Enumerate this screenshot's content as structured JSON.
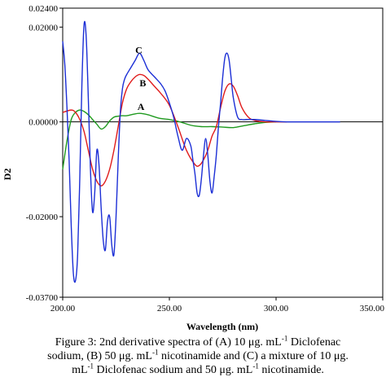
{
  "chart_data": {
    "type": "line",
    "title": "",
    "xlabel": "Wavelength (nm)",
    "ylabel": "D2",
    "xlim": [
      200,
      350
    ],
    "ylim": [
      -0.037,
      0.024
    ],
    "xticks": [
      "200.00",
      "250.00",
      "300.00",
      "350.00"
    ],
    "yticks": [
      "0.02400",
      "0.02000",
      "0.00000",
      "-0.02000",
      "-0.03700"
    ],
    "xtick_values": [
      200,
      250,
      300,
      350
    ],
    "ytick_values": [
      0.024,
      0.02,
      0,
      -0.02,
      -0.037
    ],
    "grid": false,
    "series": [
      {
        "name": "A",
        "color": "#1f9a1f",
        "label_at": [
          235,
          0.0025
        ],
        "x": [
          200,
          202,
          204,
          206,
          208,
          210,
          212,
          214,
          216,
          218,
          220,
          222,
          224,
          226,
          228,
          230,
          233,
          236,
          240,
          245,
          250,
          255,
          260,
          265,
          270,
          275,
          280,
          285,
          290,
          295,
          300
        ],
        "y": [
          -0.01,
          -0.004,
          0.0005,
          0.002,
          0.0025,
          0.0022,
          0.0015,
          0.0005,
          -0.0005,
          -0.0015,
          -0.001,
          0.0002,
          0.001,
          0.0012,
          0.0013,
          0.0013,
          0.0016,
          0.0018,
          0.0015,
          0.0008,
          0.0005,
          0.0,
          -0.0007,
          -0.001,
          -0.001,
          -0.0011,
          -0.0012,
          -0.0008,
          -0.0004,
          -0.0001,
          0.0
        ]
      },
      {
        "name": "B",
        "color": "#e01b1b",
        "label_at": [
          236,
          0.0075
        ],
        "x": [
          200,
          204,
          206,
          208,
          210,
          212,
          214,
          216,
          218,
          220,
          222,
          224,
          226,
          228,
          230,
          232,
          234,
          236,
          238,
          240,
          243,
          246,
          250,
          254,
          258,
          262,
          264,
          266,
          268,
          270,
          272,
          274,
          276,
          278,
          280,
          282,
          284,
          287,
          290,
          295,
          300,
          305
        ],
        "y": [
          0.002,
          0.0025,
          0.002,
          0.0005,
          -0.002,
          -0.006,
          -0.01,
          -0.0125,
          -0.0135,
          -0.0125,
          -0.01,
          -0.006,
          -0.001,
          0.004,
          0.007,
          0.0085,
          0.0095,
          0.01,
          0.0098,
          0.009,
          0.0075,
          0.006,
          0.0035,
          -0.001,
          -0.006,
          -0.009,
          -0.0092,
          -0.008,
          -0.006,
          -0.003,
          -0.001,
          0.003,
          0.0065,
          0.008,
          0.0075,
          0.0055,
          0.003,
          0.001,
          0.0003,
          0.0,
          0.0,
          0.0
        ]
      },
      {
        "name": "C",
        "color": "#1c2fd6",
        "label_at": [
          234,
          0.0145
        ],
        "x": [
          200,
          201,
          202,
          203,
          204,
          205,
          206,
          207,
          208,
          209,
          210,
          211,
          212,
          213,
          214,
          215,
          216,
          217,
          218,
          219,
          220,
          221,
          222,
          223,
          224,
          225,
          226,
          227,
          228,
          229,
          230,
          232,
          234,
          236,
          238,
          240,
          243,
          246,
          248,
          250,
          252,
          254,
          256,
          258,
          260,
          261,
          262,
          263,
          264,
          265,
          266,
          267,
          268,
          269,
          270,
          271,
          272,
          273,
          274,
          275,
          276,
          277,
          278,
          279,
          280,
          282,
          284,
          286,
          290,
          295,
          300,
          305,
          310,
          320,
          330
        ],
        "y": [
          0.017,
          0.012,
          0.003,
          -0.008,
          -0.022,
          -0.032,
          -0.0335,
          -0.028,
          -0.012,
          0.008,
          0.0205,
          0.018,
          0.005,
          -0.01,
          -0.019,
          -0.015,
          -0.006,
          -0.009,
          -0.018,
          -0.025,
          -0.027,
          -0.021,
          -0.02,
          -0.026,
          -0.028,
          -0.02,
          -0.008,
          0.002,
          0.007,
          0.009,
          0.01,
          0.0115,
          0.013,
          0.0145,
          0.013,
          0.011,
          0.0095,
          0.008,
          0.0065,
          0.004,
          0.001,
          -0.003,
          -0.006,
          -0.0035,
          -0.005,
          -0.008,
          -0.011,
          -0.015,
          -0.0155,
          -0.012,
          -0.007,
          -0.0035,
          -0.007,
          -0.0125,
          -0.015,
          -0.0115,
          -0.007,
          -0.001,
          0.004,
          0.0095,
          0.0135,
          0.0145,
          0.013,
          0.009,
          0.005,
          0.001,
          0.0005,
          0.0005,
          0.0005,
          0.0003,
          0.0001,
          0.0,
          0.0,
          0.0,
          0.0
        ]
      }
    ]
  },
  "caption": {
    "line1_a": "Figure 3: 2nd derivative spectra of (A) 10 μg. mL",
    "line1_sup": "-1",
    "line1_b": " Diclofenac",
    "line2_a": "sodium, (B) 50 μg. mL",
    "line2_sup": "-1",
    "line2_b": " nicotinamide and (C) a mixture of 10 μg.",
    "line3_a": "mL",
    "line3_sup": "-1",
    "line3_b": " Diclofenac sodium and 50 μg. mL",
    "line3_sup2": "-1",
    "line3_c": " nicotinamide."
  }
}
